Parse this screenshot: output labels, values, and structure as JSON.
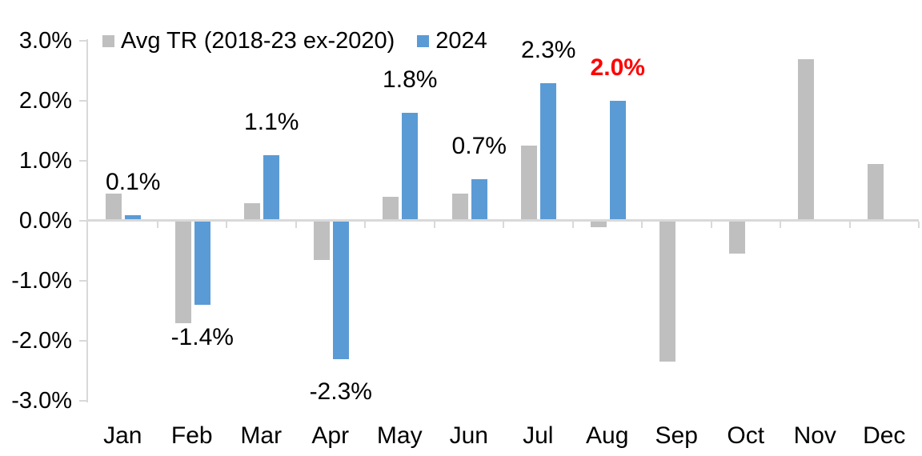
{
  "chart_data": {
    "type": "bar",
    "title": "",
    "xlabel": "",
    "ylabel": "",
    "categories": [
      "Jan",
      "Feb",
      "Mar",
      "Apr",
      "May",
      "Jun",
      "Jul",
      "Aug",
      "Sep",
      "Oct",
      "Nov",
      "Dec"
    ],
    "series": [
      {
        "name": "Avg TR (2018-23 ex-2020)",
        "color": "#BFBFBF",
        "values": [
          0.45,
          -1.7,
          0.3,
          -0.65,
          0.4,
          0.45,
          1.25,
          -0.1,
          -2.35,
          -0.55,
          2.7,
          0.95
        ]
      },
      {
        "name": "2024",
        "color": "#5B9BD5",
        "values": [
          0.1,
          -1.4,
          1.1,
          -2.3,
          1.8,
          0.7,
          2.3,
          2.0,
          null,
          null,
          null,
          null
        ]
      }
    ],
    "ylim": [
      -3,
      3
    ],
    "ytick_step": 1.0,
    "ytick_labels": [
      "3.0%",
      "2.0%",
      "1.0%",
      "0.0%",
      "-1.0%",
      "-2.0%",
      "-3.0%"
    ],
    "grid": false,
    "legend_position": "top-left",
    "axis_color": "#D9D9D9",
    "text_color": "#000000",
    "annotations": [
      {
        "month": "Jan",
        "series": "2024",
        "text": "0.1%",
        "color": "#000000",
        "bold": false
      },
      {
        "month": "Feb",
        "series": "2024",
        "text": "-1.4%",
        "color": "#000000",
        "bold": false
      },
      {
        "month": "Mar",
        "series": "2024",
        "text": "1.1%",
        "color": "#000000",
        "bold": false
      },
      {
        "month": "Apr",
        "series": "2024",
        "text": "-2.3%",
        "color": "#000000",
        "bold": false
      },
      {
        "month": "May",
        "series": "2024",
        "text": "1.8%",
        "color": "#000000",
        "bold": false
      },
      {
        "month": "Jun",
        "series": "2024",
        "text": "0.7%",
        "color": "#000000",
        "bold": false
      },
      {
        "month": "Jul",
        "series": "2024",
        "text": "2.3%",
        "color": "#000000",
        "bold": false
      },
      {
        "month": "Aug",
        "series": "2024",
        "text": "2.0%",
        "color": "#FF0000",
        "bold": true
      }
    ]
  }
}
